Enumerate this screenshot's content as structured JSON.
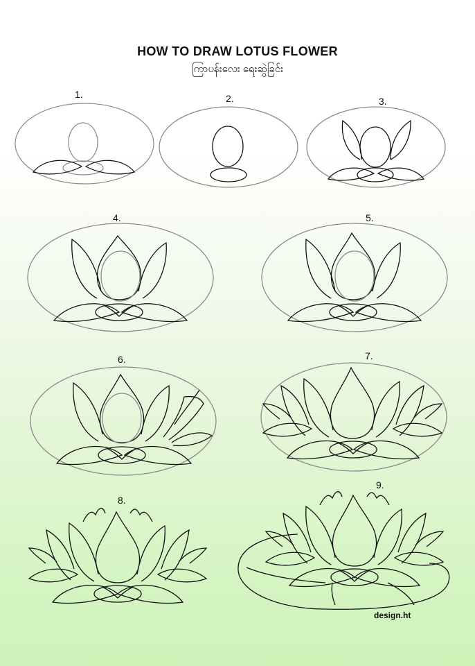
{
  "title": "HOW TO DRAW LOTUS FLOWER",
  "subtitle": "ကြာပန်းလေး ရေးဆွဲခြင်း",
  "steps": [
    {
      "number": "1."
    },
    {
      "number": "2."
    },
    {
      "number": "3."
    },
    {
      "number": "4."
    },
    {
      "number": "5."
    },
    {
      "number": "6."
    },
    {
      "number": "7."
    },
    {
      "number": "8."
    },
    {
      "number": "9."
    }
  ],
  "credit": "design.ht",
  "colors": {
    "line": "#111111",
    "guide": "#8a8a8a",
    "background_top": "#ffffff",
    "background_bottom": "#cdf3b9"
  }
}
